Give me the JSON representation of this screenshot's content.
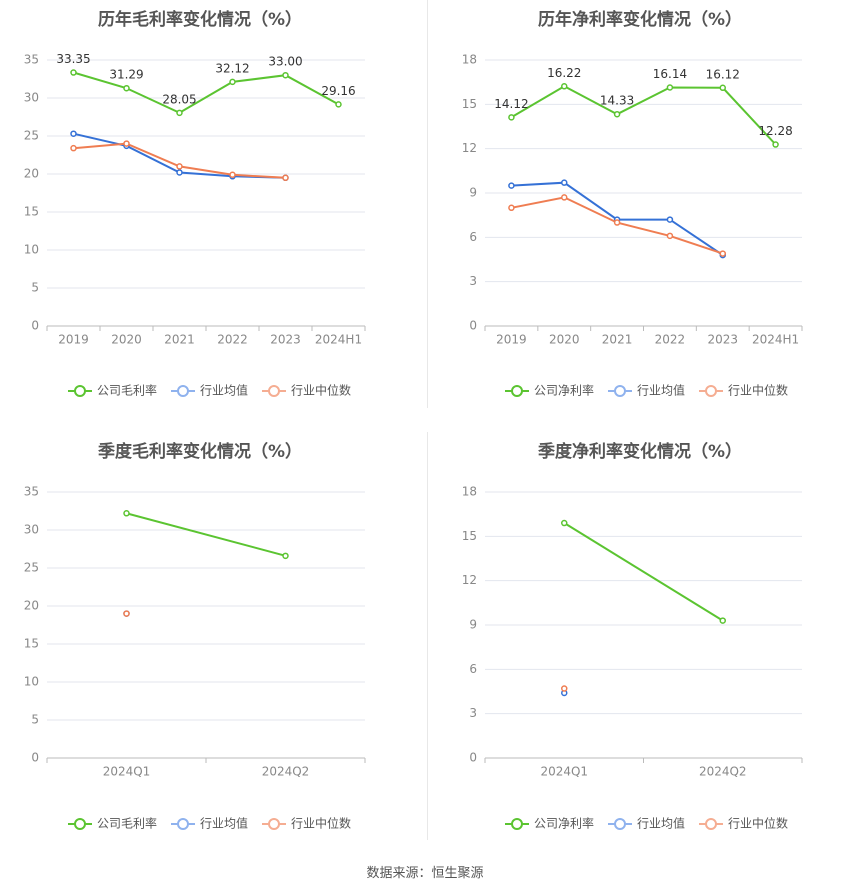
{
  "source_text": "数据来源：恒生聚源",
  "colors": {
    "company": "#5bc431",
    "industry_avg": "#3571d6",
    "industry_median": "#ef7d52",
    "legend_avg": "#8fb2ee",
    "legend_median": "#f5ad92",
    "grid": "#e3e6ee",
    "axis": "#bbbbbb",
    "tick_text": "#888888",
    "title": "#555555"
  },
  "chart_data": [
    {
      "type": "line",
      "title": "历年毛利率变化情况（%）",
      "categories": [
        "2019",
        "2020",
        "2021",
        "2022",
        "2023",
        "2024H1"
      ],
      "ylim": [
        0,
        35
      ],
      "yticks": [
        0,
        5,
        10,
        15,
        20,
        25,
        30,
        35
      ],
      "grid": true,
      "legend_position": "bottom",
      "series": [
        {
          "name": "公司毛利率",
          "role": "company",
          "values": [
            33.35,
            31.29,
            28.05,
            32.12,
            33.0,
            29.16
          ],
          "labels": [
            "33.35",
            "31.29",
            "28.05",
            "32.12",
            "33.00",
            "29.16"
          ]
        },
        {
          "name": "行业均值",
          "role": "avg",
          "values": [
            25.3,
            23.7,
            20.2,
            19.7,
            19.5,
            null
          ]
        },
        {
          "name": "行业中位数",
          "role": "median",
          "values": [
            23.4,
            24.0,
            21.0,
            19.9,
            19.5,
            null
          ]
        }
      ]
    },
    {
      "type": "line",
      "title": "历年净利率变化情况（%）",
      "categories": [
        "2019",
        "2020",
        "2021",
        "2022",
        "2023",
        "2024H1"
      ],
      "ylim": [
        0,
        18
      ],
      "yticks": [
        0,
        3,
        6,
        9,
        12,
        15,
        18
      ],
      "grid": true,
      "legend_position": "bottom",
      "series": [
        {
          "name": "公司净利率",
          "role": "company",
          "values": [
            14.12,
            16.22,
            14.33,
            16.14,
            16.12,
            12.28
          ],
          "labels": [
            "14.12",
            "16.22",
            "14.33",
            "16.14",
            "16.12",
            "12.28"
          ]
        },
        {
          "name": "行业均值",
          "role": "avg",
          "values": [
            9.5,
            9.7,
            7.2,
            7.2,
            4.8,
            null
          ]
        },
        {
          "name": "行业中位数",
          "role": "median",
          "values": [
            8.0,
            8.7,
            7.0,
            6.1,
            4.9,
            null
          ]
        }
      ]
    },
    {
      "type": "line",
      "title": "季度毛利率变化情况（%）",
      "categories": [
        "2024Q1",
        "2024Q2"
      ],
      "ylim": [
        0,
        35
      ],
      "yticks": [
        0,
        5,
        10,
        15,
        20,
        25,
        30,
        35
      ],
      "grid": true,
      "legend_position": "bottom",
      "series": [
        {
          "name": "公司毛利率",
          "role": "company",
          "values": [
            32.2,
            26.6
          ]
        },
        {
          "name": "行业均值",
          "role": "avg",
          "values": [
            19.0,
            null
          ]
        },
        {
          "name": "行业中位数",
          "role": "median",
          "values": [
            19.0,
            null
          ]
        }
      ]
    },
    {
      "type": "line",
      "title": "季度净利率变化情况（%）",
      "categories": [
        "2024Q1",
        "2024Q2"
      ],
      "ylim": [
        0,
        18
      ],
      "yticks": [
        0,
        3,
        6,
        9,
        12,
        15,
        18
      ],
      "grid": true,
      "legend_position": "bottom",
      "series": [
        {
          "name": "公司净利率",
          "role": "company",
          "values": [
            15.9,
            9.3
          ]
        },
        {
          "name": "行业均值",
          "role": "avg",
          "values": [
            4.4,
            null
          ]
        },
        {
          "name": "行业中位数",
          "role": "median",
          "values": [
            4.7,
            null
          ]
        }
      ]
    }
  ]
}
